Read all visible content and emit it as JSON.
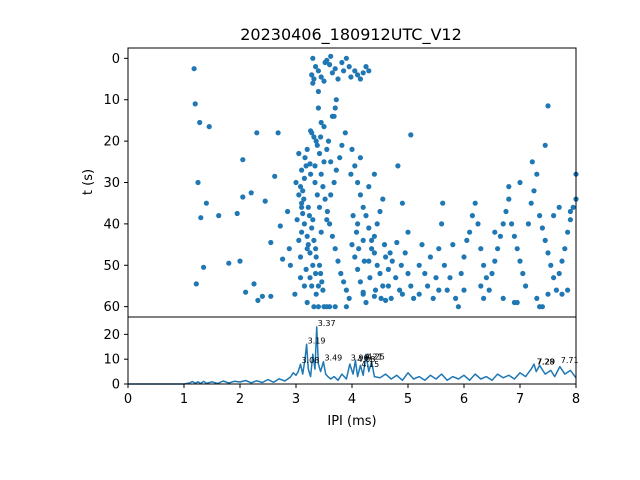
{
  "chart_data": [
    {
      "type": "scatter",
      "title": "20230406_180912UTC_V12",
      "xlabel": "",
      "ylabel": "t (s)",
      "xlim": [
        0,
        8
      ],
      "ylim": [
        62.5,
        -2.5
      ],
      "yaxis_inverted": true,
      "yticks": [
        0,
        10,
        20,
        30,
        40,
        50,
        60
      ],
      "grid": false,
      "color": "#1f77b4",
      "points": [
        [
          1.18,
          2.5
        ],
        [
          1.2,
          11
        ],
        [
          1.28,
          15.5
        ],
        [
          1.45,
          16.5
        ],
        [
          1.25,
          30
        ],
        [
          1.3,
          38.5
        ],
        [
          1.4,
          35
        ],
        [
          1.22,
          54.5
        ],
        [
          1.35,
          50.5
        ],
        [
          1.62,
          38
        ],
        [
          1.8,
          49.5
        ],
        [
          1.95,
          37.5
        ],
        [
          2.0,
          49
        ],
        [
          2.05,
          33.5
        ],
        [
          2.1,
          56.5
        ],
        [
          2.05,
          24.5
        ],
        [
          2.2,
          32.5
        ],
        [
          2.3,
          18
        ],
        [
          2.45,
          34.5
        ],
        [
          2.55,
          44.5
        ],
        [
          2.68,
          18
        ],
        [
          2.62,
          28.5
        ],
        [
          2.72,
          40.5
        ],
        [
          2.85,
          37
        ],
        [
          2.9,
          50
        ],
        [
          2.4,
          57.5
        ],
        [
          2.55,
          57.5
        ],
        [
          2.25,
          54.5
        ],
        [
          2.32,
          58.5
        ],
        [
          2.88,
          46
        ],
        [
          2.76,
          48.5
        ],
        [
          2.98,
          57
        ],
        [
          3.05,
          33
        ],
        [
          3.08,
          31
        ],
        [
          3.1,
          35
        ],
        [
          3.12,
          37.5
        ],
        [
          3.15,
          40
        ],
        [
          3.2,
          43
        ],
        [
          3.22,
          45
        ],
        [
          3.25,
          47
        ],
        [
          3.3,
          50
        ],
        [
          3.35,
          52
        ],
        [
          3.4,
          55
        ],
        [
          3.45,
          28
        ],
        [
          3.5,
          25
        ],
        [
          3.55,
          22
        ],
        [
          3.28,
          18
        ],
        [
          3.32,
          19
        ],
        [
          3.36,
          20
        ],
        [
          3.38,
          21
        ],
        [
          3.26,
          17.5
        ],
        [
          3.42,
          23
        ],
        [
          3.18,
          26
        ],
        [
          3.15,
          29
        ],
        [
          3.48,
          31
        ],
        [
          3.52,
          34
        ],
        [
          3.56,
          37
        ],
        [
          3.6,
          40
        ],
        [
          3.65,
          43
        ],
        [
          3.7,
          46
        ],
        [
          3.75,
          49
        ],
        [
          3.8,
          52
        ],
        [
          3.85,
          54
        ],
        [
          3.9,
          56
        ],
        [
          3.95,
          58
        ],
        [
          3.32,
          60
        ],
        [
          3.4,
          60
        ],
        [
          3.5,
          60
        ],
        [
          3.6,
          60
        ],
        [
          3.7,
          60
        ],
        [
          3.2,
          59
        ],
        [
          3.15,
          55
        ],
        [
          3.25,
          53
        ],
        [
          3.35,
          46
        ],
        [
          3.45,
          42
        ],
        [
          3.55,
          39
        ],
        [
          3.62,
          33
        ],
        [
          3.68,
          30
        ],
        [
          3.72,
          27
        ],
        [
          3.78,
          24
        ],
        [
          3.82,
          21
        ],
        [
          3.88,
          18
        ],
        [
          3.65,
          14
        ],
        [
          3.4,
          12
        ],
        [
          3.45,
          15.5
        ],
        [
          3.5,
          16.5
        ],
        [
          3.58,
          20
        ],
        [
          3.62,
          25
        ],
        [
          3.2,
          22
        ],
        [
          3.25,
          25.5
        ],
        [
          3.05,
          23
        ],
        [
          3.1,
          27
        ],
        [
          3.0,
          30
        ],
        [
          3.02,
          39
        ],
        [
          3.05,
          44
        ],
        [
          3.08,
          48
        ],
        [
          3.3,
          0
        ],
        [
          3.35,
          2
        ],
        [
          3.4,
          3
        ],
        [
          3.45,
          4.5
        ],
        [
          3.5,
          5.5
        ],
        [
          3.55,
          0.5
        ],
        [
          3.6,
          1.5
        ],
        [
          3.65,
          3.5
        ],
        [
          3.7,
          2.5
        ],
        [
          3.75,
          5
        ],
        [
          3.82,
          1
        ],
        [
          3.85,
          3
        ],
        [
          3.9,
          0
        ],
        [
          3.95,
          2
        ],
        [
          4.05,
          3
        ],
        [
          4.1,
          4
        ],
        [
          4.15,
          5
        ],
        [
          4.2,
          3.5
        ],
        [
          4.25,
          2
        ],
        [
          4.3,
          3
        ],
        [
          3.28,
          4
        ],
        [
          3.32,
          5
        ],
        [
          3.3,
          6
        ],
        [
          3.4,
          8
        ],
        [
          3.72,
          10
        ],
        [
          3.7,
          12
        ],
        [
          3.68,
          14
        ],
        [
          3.52,
          1
        ],
        [
          3.62,
          -0.5
        ],
        [
          3.98,
          4.5
        ],
        [
          4.0,
          22
        ],
        [
          4.05,
          26
        ],
        [
          4.1,
          30
        ],
        [
          4.15,
          33
        ],
        [
          4.2,
          36
        ],
        [
          4.25,
          38
        ],
        [
          4.3,
          41
        ],
        [
          4.35,
          44
        ],
        [
          4.4,
          47
        ],
        [
          4.45,
          50
        ],
        [
          4.5,
          52
        ],
        [
          4.55,
          55
        ],
        [
          4.0,
          45
        ],
        [
          4.05,
          48
        ],
        [
          4.1,
          51
        ],
        [
          4.15,
          54
        ],
        [
          4.2,
          57
        ],
        [
          4.25,
          59
        ],
        [
          4.3,
          49
        ],
        [
          4.35,
          46
        ],
        [
          4.4,
          43
        ],
        [
          4.45,
          40
        ],
        [
          4.5,
          37
        ],
        [
          4.55,
          34
        ],
        [
          4.1,
          40
        ],
        [
          4.2,
          44
        ],
        [
          4.3,
          31
        ],
        [
          4.4,
          28
        ],
        [
          4.15,
          24
        ],
        [
          3.98,
          28
        ],
        [
          4.02,
          38
        ],
        [
          4.08,
          42
        ],
        [
          4.12,
          46
        ],
        [
          4.22,
          49
        ],
        [
          4.32,
          53
        ],
        [
          4.42,
          56
        ],
        [
          4.52,
          58
        ],
        [
          4.6,
          48
        ],
        [
          4.65,
          51
        ],
        [
          4.58,
          45
        ],
        [
          4.68,
          47
        ],
        [
          4.72,
          49
        ],
        [
          4.78,
          53
        ],
        [
          4.85,
          56
        ],
        [
          4.8,
          44.5
        ],
        [
          4.88,
          50
        ],
        [
          4.95,
          47
        ],
        [
          5.0,
          52
        ],
        [
          5.05,
          55
        ],
        [
          5.1,
          58
        ],
        [
          4.9,
          35
        ],
        [
          5.0,
          42
        ],
        [
          5.05,
          18.5
        ],
        [
          4.82,
          26
        ],
        [
          5.2,
          50
        ],
        [
          5.3,
          52
        ],
        [
          5.35,
          55
        ],
        [
          5.25,
          45
        ],
        [
          5.4,
          48
        ],
        [
          5.45,
          58
        ],
        [
          5.5,
          53
        ],
        [
          5.55,
          46
        ],
        [
          5.6,
          40
        ],
        [
          5.62,
          35
        ],
        [
          5.65,
          50
        ],
        [
          5.7,
          56
        ],
        [
          5.75,
          53
        ],
        [
          5.8,
          45
        ],
        [
          5.85,
          58
        ],
        [
          5.9,
          60
        ],
        [
          5.95,
          52
        ],
        [
          6.0,
          48
        ],
        [
          6.05,
          44
        ],
        [
          6.1,
          42
        ],
        [
          6.15,
          38
        ],
        [
          6.2,
          35
        ],
        [
          6.25,
          40
        ],
        [
          6.3,
          46
        ],
        [
          6.35,
          50
        ],
        [
          6.4,
          53
        ],
        [
          6.45,
          56
        ],
        [
          6.5,
          52
        ],
        [
          6.55,
          49
        ],
        [
          6.6,
          46
        ],
        [
          6.65,
          43
        ],
        [
          6.7,
          40
        ],
        [
          6.75,
          37
        ],
        [
          6.8,
          34
        ],
        [
          6.85,
          40
        ],
        [
          6.9,
          43
        ],
        [
          6.95,
          46
        ],
        [
          7.0,
          49
        ],
        [
          7.05,
          52
        ],
        [
          7.1,
          55
        ],
        [
          7.15,
          40
        ],
        [
          7.2,
          35
        ],
        [
          7.25,
          32
        ],
        [
          7.3,
          28
        ],
        [
          7.35,
          38
        ],
        [
          7.4,
          41
        ],
        [
          7.45,
          44
        ],
        [
          7.5,
          47
        ],
        [
          7.55,
          50
        ],
        [
          7.6,
          53
        ],
        [
          7.65,
          56
        ],
        [
          7.7,
          52
        ],
        [
          7.75,
          49
        ],
        [
          7.8,
          46
        ],
        [
          7.85,
          42
        ],
        [
          7.9,
          39
        ],
        [
          7.95,
          36
        ],
        [
          8.0,
          34
        ],
        [
          7.22,
          25
        ],
        [
          7.5,
          11.5
        ],
        [
          7.45,
          21
        ],
        [
          7.0,
          30
        ],
        [
          6.8,
          31
        ],
        [
          6.55,
          42
        ],
        [
          6.7,
          58
        ],
        [
          6.9,
          59
        ],
        [
          6.95,
          59
        ],
        [
          7.3,
          58
        ],
        [
          7.35,
          60
        ],
        [
          7.4,
          60
        ],
        [
          7.5,
          57
        ],
        [
          7.75,
          57
        ],
        [
          7.85,
          56
        ],
        [
          8.0,
          28
        ],
        [
          7.9,
          37
        ],
        [
          7.6,
          38
        ],
        [
          7.7,
          36
        ],
        [
          6.35,
          58
        ],
        [
          6.3,
          55
        ],
        [
          5.55,
          56
        ],
        [
          6.0,
          56
        ],
        [
          5.2,
          57
        ],
        [
          4.9,
          57
        ],
        [
          4.7,
          58
        ],
        [
          4.6,
          58.5
        ],
        [
          4.65,
          55
        ],
        [
          4.2,
          56.5
        ],
        [
          4.4,
          57.5
        ],
        [
          3.9,
          60
        ],
        [
          3.55,
          60
        ],
        [
          3.1,
          36
        ],
        [
          3.12,
          32
        ],
        [
          3.14,
          34
        ],
        [
          3.22,
          36
        ],
        [
          3.24,
          38
        ],
        [
          3.28,
          41
        ],
        [
          3.32,
          44
        ],
        [
          3.36,
          48
        ],
        [
          3.42,
          50
        ],
        [
          3.44,
          52
        ],
        [
          3.46,
          54
        ],
        [
          3.48,
          56
        ],
        [
          3.36,
          57
        ],
        [
          3.18,
          51
        ],
        [
          3.08,
          53
        ],
        [
          3.28,
          55
        ],
        [
          3.1,
          42
        ],
        [
          3.2,
          46
        ],
        [
          3.3,
          39
        ],
        [
          3.38,
          33
        ],
        [
          3.42,
          36
        ],
        [
          3.34,
          30
        ],
        [
          3.26,
          28
        ],
        [
          3.16,
          24
        ],
        [
          3.34,
          26
        ],
        [
          3.44,
          19
        ]
      ]
    },
    {
      "type": "line",
      "xlabel": "IPI (ms)",
      "ylabel": "",
      "xlim": [
        0,
        8
      ],
      "ylim": [
        0,
        27
      ],
      "xticks": [
        0,
        1,
        2,
        3,
        4,
        5,
        6,
        7,
        8
      ],
      "yticks": [
        0,
        10,
        20
      ],
      "grid": false,
      "color": "#1f77b4",
      "x": [
        0,
        0.5,
        1.0,
        1.1,
        1.15,
        1.2,
        1.25,
        1.3,
        1.35,
        1.4,
        1.5,
        1.6,
        1.7,
        1.8,
        1.9,
        2.0,
        2.1,
        2.2,
        2.3,
        2.4,
        2.5,
        2.6,
        2.7,
        2.8,
        2.9,
        2.95,
        3.0,
        3.04,
        3.08,
        3.12,
        3.16,
        3.19,
        3.22,
        3.26,
        3.3,
        3.34,
        3.37,
        3.4,
        3.44,
        3.49,
        3.53,
        3.57,
        3.62,
        3.68,
        3.75,
        3.82,
        3.9,
        3.96,
        4.02,
        4.06,
        4.1,
        4.15,
        4.2,
        4.25,
        4.3,
        4.35,
        4.4,
        4.5,
        4.6,
        4.7,
        4.8,
        4.9,
        5.0,
        5.1,
        5.2,
        5.3,
        5.4,
        5.5,
        5.6,
        5.7,
        5.8,
        5.9,
        6.0,
        6.1,
        6.2,
        6.3,
        6.4,
        6.5,
        6.6,
        6.7,
        6.8,
        6.9,
        7.0,
        7.1,
        7.2,
        7.25,
        7.29,
        7.35,
        7.45,
        7.55,
        7.62,
        7.71,
        7.8,
        7.9,
        8.0
      ],
      "y": [
        0,
        0,
        0,
        0.4,
        1.0,
        0.3,
        0.9,
        0.2,
        1.1,
        0.3,
        0.9,
        0.2,
        1.2,
        0.4,
        1.1,
        0.8,
        1.4,
        0.5,
        1.3,
        0.6,
        1.8,
        0.7,
        2.1,
        1.2,
        2.8,
        4.5,
        3.5,
        5.0,
        8.0,
        4.0,
        10.0,
        16.0,
        6.0,
        3.0,
        12.0,
        6.0,
        23.0,
        8.0,
        5.0,
        9.0,
        4.0,
        3.0,
        2.0,
        3.0,
        1.5,
        4.0,
        2.0,
        8.0,
        4.0,
        9.5,
        3.0,
        7.5,
        3.5,
        12.0,
        5.0,
        9.0,
        3.0,
        2.5,
        4.0,
        2.0,
        3.5,
        1.5,
        4.5,
        2.0,
        3.0,
        1.5,
        3.5,
        2.0,
        4.0,
        1.5,
        3.0,
        2.0,
        3.5,
        1.5,
        4.0,
        2.0,
        3.0,
        1.5,
        4.0,
        2.5,
        3.5,
        2.0,
        4.5,
        3.0,
        6.0,
        8.0,
        5.0,
        7.5,
        4.0,
        5.5,
        3.0,
        7.0,
        4.0,
        5.5,
        2.5
      ],
      "peak_labels": [
        {
          "x": 3.37,
          "y": 23,
          "text": "3.37"
        },
        {
          "x": 3.19,
          "y": 16,
          "text": "3.19"
        },
        {
          "x": 3.08,
          "y": 8,
          "text": "3.08"
        },
        {
          "x": 3.49,
          "y": 9,
          "text": "3.49"
        },
        {
          "x": 3.96,
          "y": 9,
          "text": "3.96"
        },
        {
          "x": 4.08,
          "y": 8.5,
          "text": "4.08"
        },
        {
          "x": 4.21,
          "y": 9.5,
          "text": "4.21"
        },
        {
          "x": 4.25,
          "y": 9.5,
          "text": "4.25"
        },
        {
          "x": 4.15,
          "y": 6.5,
          "text": "4.15"
        },
        {
          "x": 7.28,
          "y": 7.5,
          "text": "7.28"
        },
        {
          "x": 7.29,
          "y": 7.5,
          "text": "7.29"
        },
        {
          "x": 7.71,
          "y": 8,
          "text": "7.71"
        }
      ]
    }
  ]
}
